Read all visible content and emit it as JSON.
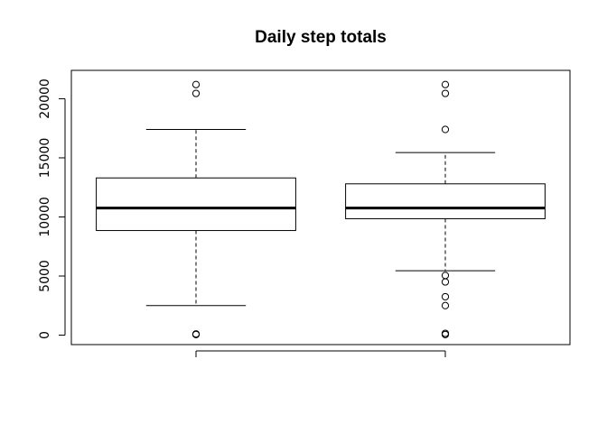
{
  "chart_data": {
    "type": "boxplot",
    "title": "Daily step totals",
    "xlabel": "",
    "ylabel": "",
    "ylim": [
      -800,
      22400
    ],
    "yticks": [
      0,
      5000,
      10000,
      15000,
      20000
    ],
    "yticklabels": [
      "0",
      "5000",
      "10000",
      "15000",
      "20000"
    ],
    "grid": false,
    "series": [
      {
        "whisker_low": 2500,
        "q1": 8850,
        "median": 10750,
        "q3": 13300,
        "whisker_high": 17400,
        "outliers": [
          21200,
          20450,
          100,
          50
        ]
      },
      {
        "whisker_low": 5450,
        "q1": 9850,
        "median": 10750,
        "q3": 12800,
        "whisker_high": 15450,
        "outliers": [
          21200,
          20450,
          17400,
          5050,
          4500,
          3250,
          2500,
          150,
          50
        ]
      }
    ]
  }
}
